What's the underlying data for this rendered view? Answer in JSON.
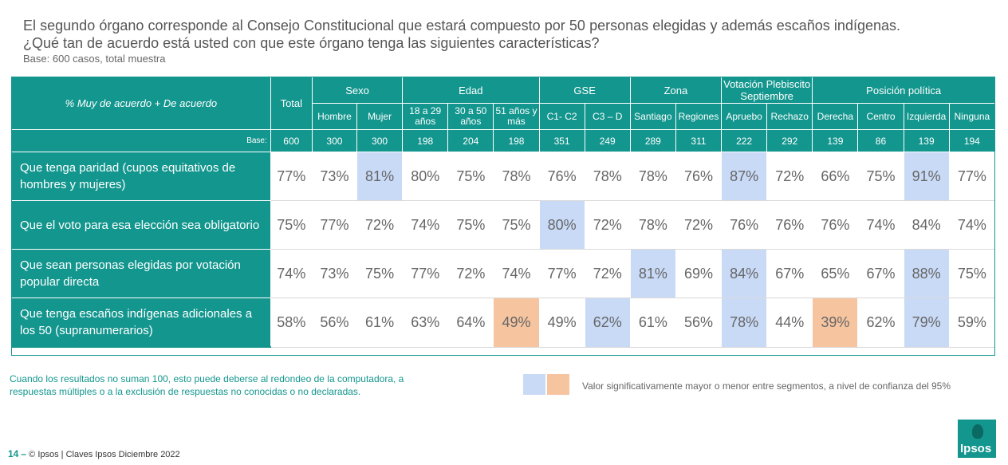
{
  "question": "El segundo órgano corresponde al Consejo Constitucional que estará compuesto por 50 personas elegidas y además escaños indígenas. ¿Qué tan de acuerdo está usted con que este órgano tenga las siguientes características?",
  "base_note": "Base: 600 casos, total muestra",
  "table": {
    "title": "% Muy de acuerdo + De acuerdo",
    "total_label": "Total",
    "groups": [
      "Sexo",
      "Edad",
      "GSE",
      "Zona",
      "Votación Plebiscito Septiembre",
      "Posición política"
    ],
    "columns": [
      "Hombre",
      "Mujer",
      "18 a 29 años",
      "30 a 50 años",
      "51 años y más",
      "C1- C2",
      "C3 – D",
      "Santiago",
      "Regiones",
      "Apruebo",
      "Rechazo",
      "Derecha",
      "Centro",
      "Izquierda",
      "Ninguna"
    ],
    "base_label": "Base:",
    "base": [
      "600",
      "300",
      "300",
      "198",
      "204",
      "198",
      "351",
      "249",
      "289",
      "311",
      "222",
      "292",
      "139",
      "86",
      "139",
      "194"
    ],
    "rows": [
      {
        "label": "Que tenga paridad (cupos equitativos de hombres y mujeres)",
        "values": [
          "77%",
          "73%",
          "81%",
          "80%",
          "75%",
          "78%",
          "76%",
          "78%",
          "78%",
          "76%",
          "87%",
          "72%",
          "66%",
          "75%",
          "91%",
          "77%"
        ],
        "highlight": [
          "",
          "",
          "blue",
          "",
          "",
          "",
          "",
          "",
          "",
          "",
          "blue",
          "",
          "",
          "",
          "blue",
          ""
        ]
      },
      {
        "label": "Que el voto para esa elección sea obligatorio",
        "values": [
          "75%",
          "77%",
          "72%",
          "74%",
          "75%",
          "75%",
          "80%",
          "72%",
          "78%",
          "72%",
          "76%",
          "76%",
          "76%",
          "74%",
          "84%",
          "74%"
        ],
        "highlight": [
          "",
          "",
          "",
          "",
          "",
          "",
          "blue",
          "",
          "",
          "",
          "",
          "",
          "",
          "",
          "",
          ""
        ]
      },
      {
        "label": "Que sean personas elegidas por votación popular directa",
        "values": [
          "74%",
          "73%",
          "75%",
          "77%",
          "72%",
          "74%",
          "77%",
          "72%",
          "81%",
          "69%",
          "84%",
          "67%",
          "65%",
          "67%",
          "88%",
          "75%"
        ],
        "highlight": [
          "",
          "",
          "",
          "",
          "",
          "",
          "",
          "",
          "blue",
          "",
          "blue",
          "",
          "",
          "",
          "blue",
          ""
        ]
      },
      {
        "label": "Que tenga escaños indígenas adicionales a los 50 (supranumerarios)",
        "values": [
          "58%",
          "56%",
          "61%",
          "63%",
          "64%",
          "49%",
          "49%",
          "62%",
          "61%",
          "56%",
          "78%",
          "44%",
          "39%",
          "62%",
          "79%",
          "59%"
        ],
        "highlight": [
          "",
          "",
          "",
          "",
          "",
          "orange",
          "",
          "blue",
          "",
          "",
          "blue",
          "",
          "orange",
          "",
          "blue",
          ""
        ]
      }
    ]
  },
  "footnote": "Cuando los resultados no suman 100, esto puede deberse al redondeo de la computadora, a respuestas múltiples o a la exclusión de respuestas no conocidas o no declaradas.",
  "legend": "Valor significativamente mayor o menor entre segmentos, a nivel de confianza del 95%",
  "colors": {
    "teal": "#13968e",
    "highlight_blue": "#c9daf7",
    "highlight_orange": "#f6c5a0"
  },
  "footer": {
    "page": "14",
    "dash": "–",
    "text": "© Ipsos | Claves Ipsos Diciembre 2022"
  },
  "logo_text": "Ipsos"
}
